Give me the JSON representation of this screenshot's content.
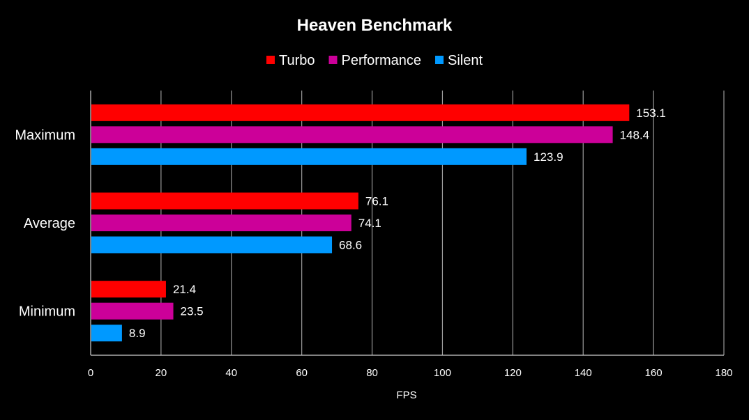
{
  "chart_data": {
    "type": "bar",
    "orientation": "horizontal",
    "title": "Heaven Benchmark",
    "xlabel": "FPS",
    "ylabel": "",
    "xlim": [
      0,
      180
    ],
    "x_ticks": [
      0,
      20,
      40,
      60,
      80,
      100,
      120,
      140,
      160,
      180
    ],
    "categories": [
      "Maximum",
      "Average",
      "Minimum"
    ],
    "series": [
      {
        "name": "Turbo",
        "color": "#ff0000",
        "values": [
          153.1,
          76.1,
          21.4
        ]
      },
      {
        "name": "Performance",
        "color": "#cc0099",
        "values": [
          148.4,
          74.1,
          23.5
        ]
      },
      {
        "name": "Silent",
        "color": "#0099ff",
        "values": [
          123.9,
          68.6,
          8.9
        ]
      }
    ],
    "legend_position": "top",
    "grid": true,
    "background": "#000000"
  }
}
